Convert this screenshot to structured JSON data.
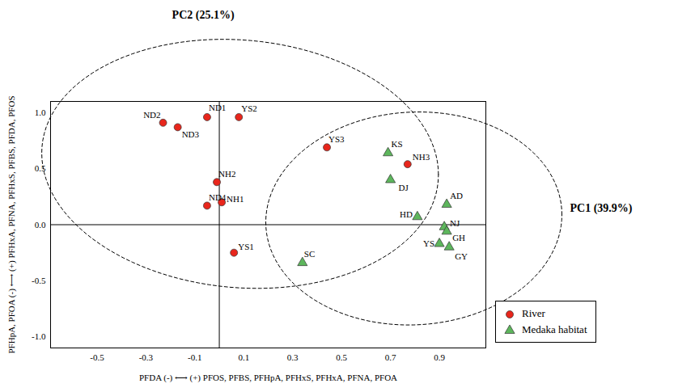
{
  "chart_data": {
    "type": "scatter",
    "x_label": "PFDA (-) ⟷ (+) PFOS, PFBS, PFHpA, PFHxS, PFHxA, PFNA, PFOA",
    "y_label": "PFHpA, PFOA (-) ⟷ (+) PFHxA, PFNA, PFHxS, PFBS, PFDA, PFOS",
    "annotations": [
      "PC2 (25.1%)",
      "PC1 (39.9%)"
    ],
    "xlim": [
      -0.69,
      1.09
    ],
    "ylim": [
      -1.1,
      1.1
    ],
    "xticks": [
      -0.5,
      -0.3,
      -0.1,
      0.1,
      0.3,
      0.5,
      0.7,
      0.9
    ],
    "yticks": [
      {
        "value": -1,
        "label": "-1.0"
      },
      -0.5,
      {
        "value": 0,
        "label": "0.0"
      },
      0.5,
      {
        "value": 1,
        "label": "1.0"
      }
    ],
    "legend": "lower right",
    "series": [
      {
        "name": "River",
        "color": "#e8261c",
        "marker": "circle",
        "labels": [
          "ND2",
          "ND1",
          "YS2",
          "ND3",
          "YS3",
          "NH3",
          "NH2",
          "NH1",
          "ND4",
          "YS1"
        ],
        "x": [
          -0.23,
          -0.05,
          0.08,
          -0.17,
          0.44,
          0.77,
          -0.01,
          0.01,
          -0.05,
          0.06
        ],
        "values": [
          0.91,
          0.96,
          0.96,
          0.87,
          0.69,
          0.54,
          0.38,
          0.2,
          0.17,
          -0.25
        ]
      },
      {
        "name": "Medaka habitat",
        "color": "#5db65c",
        "marker": "triangle",
        "labels": [
          "KS",
          "DJ",
          "AD",
          "HD",
          "NJ",
          "GH",
          "YS",
          "GY",
          "SC"
        ],
        "x": [
          0.69,
          0.7,
          0.93,
          0.81,
          0.92,
          0.93,
          0.9,
          0.94,
          0.34
        ],
        "values": [
          0.64,
          0.4,
          0.18,
          0.07,
          -0.02,
          -0.06,
          -0.17,
          -0.2,
          -0.34
        ]
      }
    ]
  }
}
